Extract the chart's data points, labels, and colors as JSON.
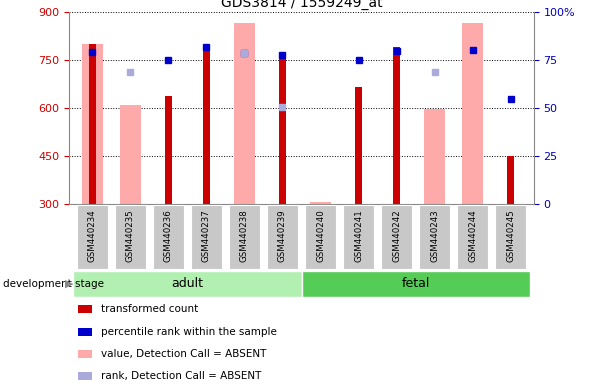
{
  "title": "GDS3814 / 1559249_at",
  "samples": [
    "GSM440234",
    "GSM440235",
    "GSM440236",
    "GSM440237",
    "GSM440238",
    "GSM440239",
    "GSM440240",
    "GSM440241",
    "GSM440242",
    "GSM440243",
    "GSM440244",
    "GSM440245"
  ],
  "red_bars": [
    800,
    null,
    635,
    790,
    null,
    775,
    null,
    665,
    790,
    null,
    null,
    450
  ],
  "pink_bars": [
    800,
    607,
    null,
    null,
    863,
    null,
    305,
    null,
    null,
    595,
    863,
    null
  ],
  "blue_dots": [
    775,
    null,
    748,
    790,
    770,
    765,
    null,
    750,
    778,
    null,
    780,
    628
  ],
  "lightblue_dots": [
    null,
    710,
    null,
    null,
    770,
    603,
    null,
    null,
    null,
    710,
    null,
    null
  ],
  "ylim": [
    300,
    900
  ],
  "y_ticks": [
    300,
    450,
    600,
    750,
    900
  ],
  "right_yticks": [
    0,
    25,
    50,
    75,
    100
  ],
  "adult_color": "#b2f0b2",
  "fetal_color": "#55cc55",
  "gray_box_color": "#c8c8c8",
  "red_color": "#cc0000",
  "pink_color": "#ffaaaa",
  "blue_color": "#0000cc",
  "lightblue_color": "#aaaadd",
  "left_tick_color": "#cc0000",
  "right_tick_color": "#0000bb",
  "pink_bar_width": 0.55,
  "red_bar_width": 0.18
}
